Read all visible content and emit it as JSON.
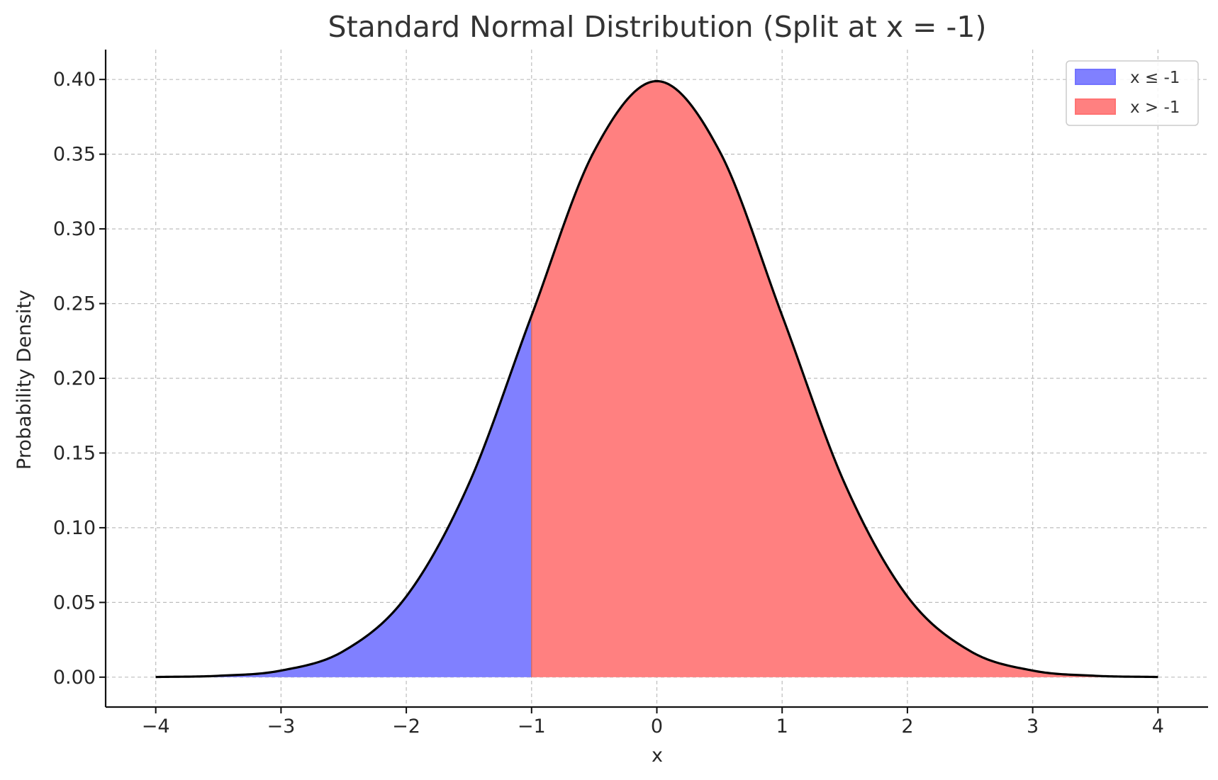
{
  "chart_data": {
    "type": "area",
    "title": "Standard Normal Distribution (Split at x = -1)",
    "xlabel": "x",
    "ylabel": "Probability Density",
    "xlim": [
      -4.4,
      4.4
    ],
    "ylim": [
      -0.02,
      0.42
    ],
    "x_ticks": [
      -4,
      -3,
      -2,
      -1,
      0,
      1,
      2,
      3,
      4
    ],
    "x_tick_labels": [
      "−4",
      "−3",
      "−2",
      "−1",
      "0",
      "1",
      "2",
      "3",
      "4"
    ],
    "y_ticks": [
      0.0,
      0.05,
      0.1,
      0.15,
      0.2,
      0.25,
      0.3,
      0.35,
      0.4
    ],
    "y_tick_labels": [
      "0.00",
      "0.05",
      "0.10",
      "0.15",
      "0.20",
      "0.25",
      "0.30",
      "0.35",
      "0.40"
    ],
    "grid": true,
    "legend_position": "top-right",
    "split_x": -1,
    "x": [
      -4.0,
      -3.5,
      -3.0,
      -2.5,
      -2.0,
      -1.5,
      -1.0,
      -0.5,
      0.0,
      0.5,
      1.0,
      1.5,
      2.0,
      2.5,
      3.0,
      3.5,
      4.0
    ],
    "y": [
      0.0001,
      0.0009,
      0.0044,
      0.0175,
      0.054,
      0.1295,
      0.242,
      0.3521,
      0.3989,
      0.3521,
      0.242,
      0.1295,
      0.054,
      0.0175,
      0.0044,
      0.0009,
      0.0001
    ],
    "series": [
      {
        "name": "x ≤ -1",
        "color": "#8080ff",
        "legend_color": "#7373ff",
        "x_range": [
          -4,
          -1
        ]
      },
      {
        "name": "x > -1",
        "color": "#ff8080",
        "legend_color": "#ff7373",
        "x_range": [
          -1,
          4
        ]
      }
    ],
    "curve_color": "#000000"
  }
}
